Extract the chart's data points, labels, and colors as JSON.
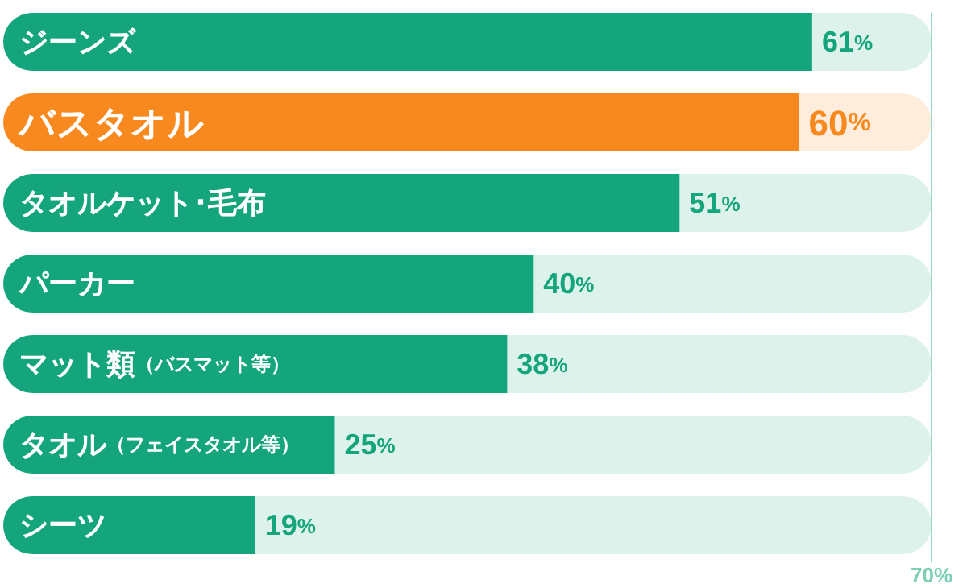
{
  "chart_data": {
    "type": "bar",
    "orientation": "horizontal",
    "categories": [
      "ジーンズ",
      "バスタオル",
      "タオルケット･毛布",
      "パーカー",
      "マット類（バスマット等）",
      "タオル（フェイスタオル等）",
      "シーツ"
    ],
    "values": [
      61,
      60,
      51,
      40,
      38,
      25,
      19
    ],
    "colors": [
      "#14a57c",
      "#f7891f",
      "#14a57c",
      "#14a57c",
      "#14a57c",
      "#14a57c",
      "#14a57c"
    ],
    "value_labels": [
      "61%",
      "60%",
      "51%",
      "40%",
      "38%",
      "25%",
      "19%"
    ],
    "xlim": [
      0,
      70
    ],
    "xticks": [
      {
        "value": 70,
        "label": "70%"
      }
    ],
    "tick_labels": "x"
  }
}
